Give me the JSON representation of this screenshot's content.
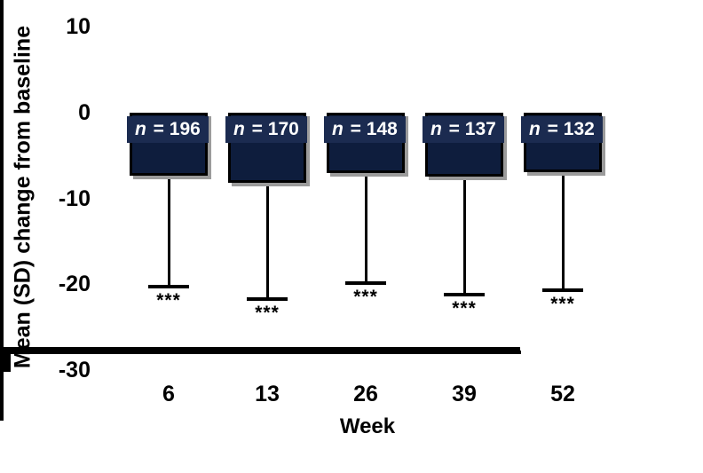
{
  "figure": {
    "background": "#ffffff",
    "axis_color": "#000000",
    "text_color": "#000000"
  },
  "chart_data": {
    "type": "bar",
    "title": "",
    "xlabel": "Week",
    "ylabel": "Mean (SD) change from baseline",
    "orientation": "vertical-negative",
    "ylim": [
      -30,
      10
    ],
    "y_ticks": [
      10,
      0,
      -10,
      -20,
      -30
    ],
    "x_categories": [
      "6",
      "13",
      "26",
      "39",
      "52"
    ],
    "grid": false,
    "legend": false,
    "bar_color": "#0e1d3d",
    "label_box_color": "#1b2b50",
    "label_text_color": "#ffffff",
    "error_bar_direction": "down",
    "points": [
      {
        "week": "6",
        "n_label": "n = 196",
        "n": 196,
        "mean": -7.3,
        "sd": 13.0,
        "error_end": -20.3,
        "significance": "***"
      },
      {
        "week": "13",
        "n_label": "n = 170",
        "n": 170,
        "mean": -8.2,
        "sd": 13.5,
        "error_end": -21.7,
        "significance": "***"
      },
      {
        "week": "26",
        "n_label": "n = 148",
        "n": 148,
        "mean": -7.0,
        "sd": 12.9,
        "error_end": -19.9,
        "significance": "***"
      },
      {
        "week": "39",
        "n_label": "n = 137",
        "n": 137,
        "mean": -7.4,
        "sd": 13.8,
        "error_end": -21.2,
        "significance": "***"
      },
      {
        "week": "52",
        "n_label": "n = 132",
        "n": 132,
        "mean": -6.9,
        "sd": 13.8,
        "error_end": -20.7,
        "significance": "***"
      }
    ]
  }
}
